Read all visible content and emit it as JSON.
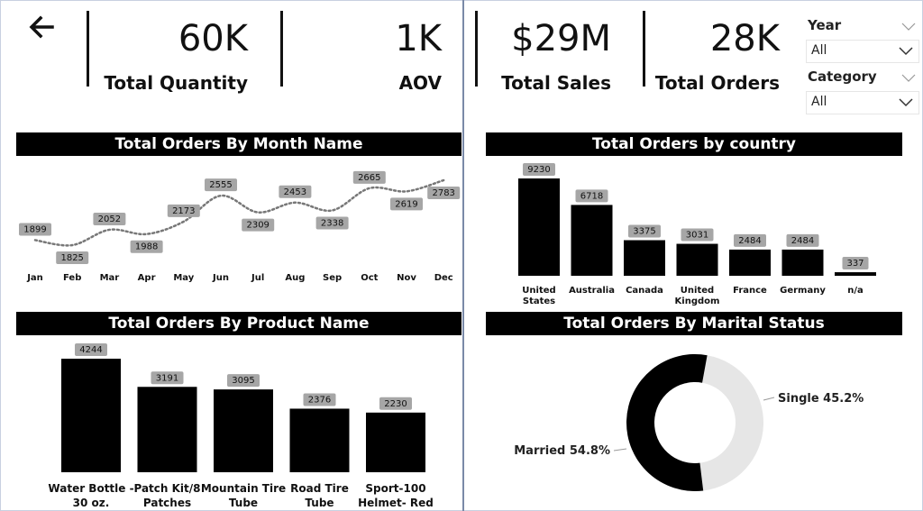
{
  "header": {
    "back_icon": "arrow-left-icon",
    "kpis": [
      {
        "value": "60K",
        "label": "Total Quantity"
      },
      {
        "value": "1K",
        "label": "AOV"
      },
      {
        "value": "$29M",
        "label": "Total Sales"
      },
      {
        "value": "28K",
        "label": "Total Orders"
      }
    ]
  },
  "filters": {
    "year": {
      "title": "Year",
      "selected": "All"
    },
    "category": {
      "title": "Category",
      "selected": "All"
    }
  },
  "chart_data": [
    {
      "type": "line",
      "title": "Total Orders By Month Name",
      "categories": [
        "Jan",
        "Feb",
        "Mar",
        "Apr",
        "May",
        "Jun",
        "Jul",
        "Aug",
        "Sep",
        "Oct",
        "Nov",
        "Dec"
      ],
      "values": [
        1899,
        1825,
        2052,
        1988,
        2173,
        2555,
        2309,
        2453,
        2338,
        2665,
        2619,
        2783
      ],
      "data_labels": [
        "1899",
        "1825",
        "2052",
        "1988",
        "2173",
        "2555",
        "2309",
        "2453",
        "2338",
        "2665",
        "2619",
        "2783"
      ],
      "line_style": "dotted",
      "color": "#777777",
      "grid": false
    },
    {
      "type": "bar",
      "title": "Total Orders by country",
      "categories": [
        [
          "United",
          "States"
        ],
        [
          "Australia"
        ],
        [
          "Canada"
        ],
        [
          "United",
          "Kingdom"
        ],
        [
          "France"
        ],
        [
          "Germany"
        ],
        [
          "n/a"
        ]
      ],
      "values": [
        9230,
        6718,
        3375,
        3031,
        2484,
        2484,
        337
      ],
      "data_labels": [
        "9230",
        "6718",
        "3375",
        "3031",
        "2484",
        "2484",
        "337"
      ],
      "ylim": [
        0,
        9230
      ],
      "color": "#000000",
      "grid": false
    },
    {
      "type": "bar",
      "title": "Total Orders By Product Name",
      "categories": [
        [
          "Water Bottle -",
          "30 oz."
        ],
        [
          "Patch Kit/8",
          "Patches"
        ],
        [
          "Mountain Tire",
          "Tube"
        ],
        [
          "Road Tire",
          "Tube"
        ],
        [
          "Sport-100",
          "Helmet- Red"
        ]
      ],
      "values": [
        4244,
        3191,
        3095,
        2376,
        2230
      ],
      "data_labels": [
        "4244",
        "3191",
        "3095",
        "2376",
        "2230"
      ],
      "ylim": [
        0,
        4244
      ],
      "color": "#000000",
      "grid": false
    },
    {
      "type": "pie",
      "title": "Total Orders By Marital Status",
      "donut": true,
      "slices": [
        {
          "label": "Single 45.2%",
          "value": 45.2,
          "color": "#e6e6e6"
        },
        {
          "label": "Married 54.8%",
          "value": 54.8,
          "color": "#000000"
        }
      ]
    }
  ]
}
